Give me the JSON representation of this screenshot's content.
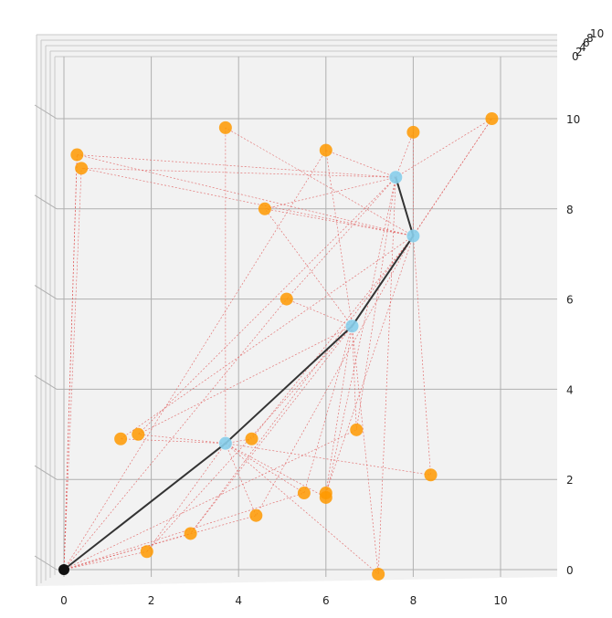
{
  "chart_data": {
    "type": "scatter",
    "view": "3d-top-down",
    "title": "",
    "xlabel": "",
    "ylabel": "",
    "zlabel": "",
    "xlim": [
      0,
      11.2
    ],
    "ylim": [
      -0.2,
      11.1
    ],
    "grid": true,
    "x_ticks": [
      0,
      2,
      4,
      6,
      8,
      10
    ],
    "y_ticks": [
      0,
      2,
      4,
      6,
      8,
      10
    ],
    "z_ticks": [
      0,
      2,
      4,
      6,
      8,
      10
    ],
    "colors": {
      "target_point": "#ff9900",
      "path_point": "#87ceeb",
      "start_point": "#111111",
      "path_line": "#333333",
      "edge": "#e06060",
      "grid": "#b0b0b0",
      "pane": "#f2f2f2"
    },
    "points": [
      {
        "x": 0.3,
        "y": 9.2,
        "kind": "target"
      },
      {
        "x": 0.4,
        "y": 8.9,
        "kind": "target"
      },
      {
        "x": 3.7,
        "y": 9.8,
        "kind": "target"
      },
      {
        "x": 6.0,
        "y": 9.3,
        "kind": "target"
      },
      {
        "x": 8.0,
        "y": 9.7,
        "kind": "target"
      },
      {
        "x": 9.8,
        "y": 10.0,
        "kind": "target"
      },
      {
        "x": 4.6,
        "y": 8.0,
        "kind": "target"
      },
      {
        "x": 5.1,
        "y": 6.0,
        "kind": "target"
      },
      {
        "x": 1.3,
        "y": 2.9,
        "kind": "target"
      },
      {
        "x": 1.7,
        "y": 3.0,
        "kind": "target"
      },
      {
        "x": 4.3,
        "y": 2.9,
        "kind": "target"
      },
      {
        "x": 6.7,
        "y": 3.1,
        "kind": "target"
      },
      {
        "x": 8.4,
        "y": 2.1,
        "kind": "target"
      },
      {
        "x": 5.5,
        "y": 1.7,
        "kind": "target"
      },
      {
        "x": 6.0,
        "y": 1.7,
        "kind": "target"
      },
      {
        "x": 6.0,
        "y": 1.6,
        "kind": "target"
      },
      {
        "x": 4.4,
        "y": 1.2,
        "kind": "target"
      },
      {
        "x": 2.9,
        "y": 0.8,
        "kind": "target"
      },
      {
        "x": 1.9,
        "y": 0.4,
        "kind": "target"
      },
      {
        "x": 7.2,
        "y": -0.1,
        "kind": "target"
      }
    ],
    "path": [
      {
        "x": 0.0,
        "y": 0.0
      },
      {
        "x": 3.7,
        "y": 2.8
      },
      {
        "x": 6.6,
        "y": 5.4
      },
      {
        "x": 8.0,
        "y": 7.4
      },
      {
        "x": 7.6,
        "y": 8.7
      }
    ],
    "edges_from_path": [
      [
        0,
        [
          0,
          1,
          3,
          7,
          11,
          13,
          17,
          18,
          16
        ]
      ],
      [
        1,
        [
          2,
          8,
          9,
          10,
          12,
          13,
          15,
          16,
          18,
          19
        ]
      ],
      [
        2,
        [
          3,
          5,
          6,
          7,
          11,
          13,
          14,
          17,
          18,
          19,
          9
        ]
      ],
      [
        3,
        [
          0,
          1,
          2,
          4,
          5,
          6,
          8,
          10,
          12,
          14,
          16,
          17
        ]
      ],
      [
        4,
        [
          0,
          1,
          3,
          4,
          5,
          7,
          9,
          11,
          15,
          19,
          6
        ]
      ]
    ]
  }
}
